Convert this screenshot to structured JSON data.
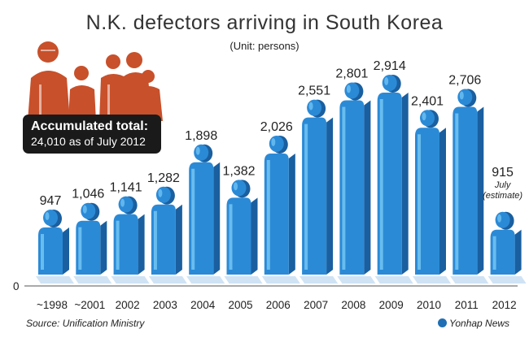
{
  "chart_data": {
    "type": "bar",
    "title": "N.K. defectors arriving in South Korea",
    "subtitle": "(Unit: persons)",
    "categories": [
      "~1998",
      "~2001",
      "2002",
      "2003",
      "2004",
      "2005",
      "2006",
      "2007",
      "2008",
      "2009",
      "2010",
      "2011",
      "2012"
    ],
    "values": [
      947,
      1046,
      1141,
      1282,
      1898,
      1382,
      2026,
      2551,
      2801,
      2914,
      2401,
      2706,
      915
    ],
    "value_labels": [
      "947",
      "1,046",
      "1,141",
      "1,282",
      "1,898",
      "1,382",
      "2,026",
      "2,551",
      "2,801",
      "2,914",
      "2,401",
      "2,706",
      "915"
    ],
    "last_note_line1": "July",
    "last_note_line2": "(estimate)",
    "y_zero_label": "0",
    "ylim": [
      0,
      2914
    ],
    "bar_color": "#2b8ad6",
    "bar_side_color": "#1a5f9f",
    "bar_highlight_color": "#6fc2f2"
  },
  "annotation": {
    "title": "Accumulated total:",
    "value": "24,010 as of July 2012"
  },
  "footer": {
    "source": "Source: Unification Ministry",
    "credit": "Yonhap News"
  },
  "icons": {
    "photo": "defectors-photo-icon",
    "credit": "yonhap-logo-icon"
  }
}
